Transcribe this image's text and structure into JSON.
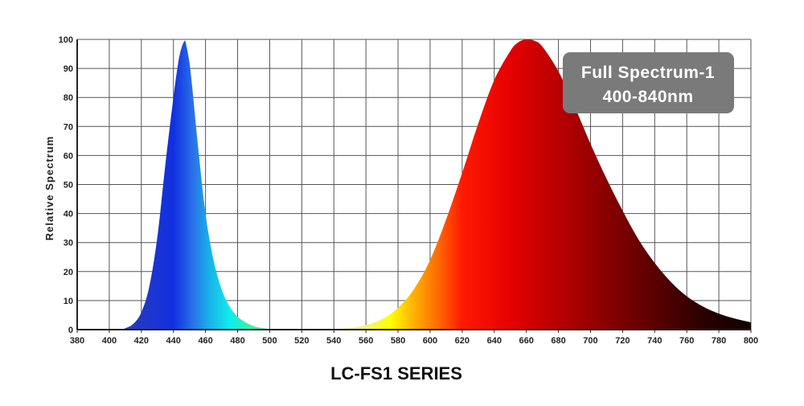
{
  "chart_data": {
    "type": "area",
    "title": "LC-FS1 SERIES",
    "xlabel": "",
    "ylabel": "Relative Spectrum",
    "xlim": [
      380,
      800
    ],
    "ylim": [
      0,
      100
    ],
    "x_ticks": [
      380,
      400,
      420,
      440,
      460,
      480,
      500,
      520,
      540,
      560,
      580,
      600,
      620,
      640,
      660,
      680,
      700,
      720,
      740,
      760,
      780,
      800
    ],
    "y_ticks": [
      0,
      10,
      20,
      30,
      40,
      50,
      60,
      70,
      80,
      90,
      100
    ],
    "grid": true,
    "annotation": {
      "line1": "Full Spectrum-1",
      "line2": "400-840nm",
      "placement": "top-right"
    },
    "series": [
      {
        "x": [
          380,
          405,
          410,
          415,
          420,
          425,
          430,
          435,
          440,
          443,
          445,
          447,
          448,
          450,
          452,
          455,
          460,
          465,
          470,
          475,
          480,
          485,
          490,
          495,
          500,
          510,
          520,
          540,
          560,
          580,
          600,
          620,
          640,
          660,
          680,
          700,
          720,
          740,
          760,
          780,
          800
        ],
        "values": [
          0,
          0,
          0.5,
          2,
          6,
          15,
          32,
          57,
          80,
          92,
          97,
          99.5,
          98,
          92,
          82,
          65,
          40,
          24,
          14,
          8,
          4.5,
          2.5,
          1.2,
          0.6,
          0.3,
          0.1,
          0,
          0,
          0,
          0,
          0,
          0,
          0,
          0,
          0,
          0,
          0,
          0,
          0,
          0,
          0
        ],
        "gradient": [
          {
            "at": 410,
            "color": "#2a3cb8"
          },
          {
            "at": 440,
            "color": "#1030e0"
          },
          {
            "at": 452,
            "color": "#2a6fe8"
          },
          {
            "at": 462,
            "color": "#18b0e8"
          },
          {
            "at": 475,
            "color": "#10ecec"
          },
          {
            "at": 490,
            "color": "#40f0a0"
          },
          {
            "at": 505,
            "color": "#a0f0c0"
          }
        ]
      },
      {
        "x": [
          380,
          530,
          540,
          550,
          560,
          570,
          580,
          590,
          600,
          610,
          620,
          630,
          640,
          650,
          655,
          660,
          665,
          670,
          680,
          690,
          700,
          710,
          720,
          730,
          740,
          750,
          760,
          770,
          780,
          790,
          800
        ],
        "values": [
          0,
          0,
          0.2,
          0.6,
          1.6,
          3.6,
          7.5,
          14,
          24,
          38,
          54,
          71,
          86,
          96,
          99,
          100,
          99.5,
          97.5,
          89,
          77,
          64,
          52,
          41,
          31,
          23,
          16.5,
          11.5,
          8,
          5.5,
          3.8,
          2.5
        ],
        "gradient": [
          {
            "at": 555,
            "color": "#f0f0a0"
          },
          {
            "at": 575,
            "color": "#ffff00"
          },
          {
            "at": 590,
            "color": "#ffb000"
          },
          {
            "at": 605,
            "color": "#ff6a00"
          },
          {
            "at": 620,
            "color": "#ff1a00"
          },
          {
            "at": 650,
            "color": "#e60000"
          },
          {
            "at": 690,
            "color": "#a80000"
          },
          {
            "at": 730,
            "color": "#6a0000"
          },
          {
            "at": 770,
            "color": "#2a0000"
          },
          {
            "at": 800,
            "color": "#120000"
          }
        ]
      }
    ]
  },
  "colors": {
    "grid": "#555555",
    "badge_bg": "#7a7a7a",
    "text": "#222222"
  }
}
